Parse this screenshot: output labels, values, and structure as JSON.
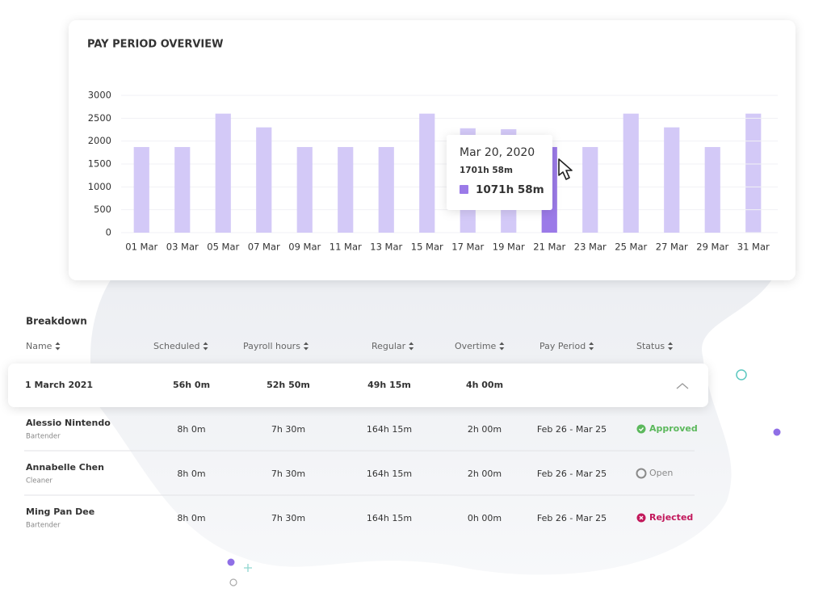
{
  "chart_data": {
    "type": "bar",
    "title": "PAY PERIOD OVERVIEW",
    "categories": [
      "01 Mar",
      "03 Mar",
      "05 Mar",
      "07 Mar",
      "09 Mar",
      "11 Mar",
      "13 Mar",
      "15 Mar",
      "17 Mar",
      "19 Mar",
      "21 Mar",
      "23 Mar",
      "25 Mar",
      "27 Mar",
      "29 Mar",
      "31 Mar"
    ],
    "values": [
      1870,
      1870,
      2600,
      2300,
      1870,
      1870,
      1870,
      2600,
      2280,
      2260,
      1870,
      1870,
      2600,
      2300,
      1870,
      2600
    ],
    "color": "#d3c9f7",
    "highlight_color": "#9b7ae8",
    "highlight_index": 10,
    "ylim": [
      0,
      3000
    ],
    "yticks": [
      0,
      500,
      1000,
      1500,
      2000,
      2500,
      3000
    ],
    "grid": true,
    "tooltip": {
      "date": "Mar 20, 2020",
      "line1": "1701h 58m",
      "value": "1071h 58m"
    }
  },
  "breakdown": {
    "title": "Breakdown",
    "headers": [
      "Name",
      "Scheduled",
      "Payroll hours",
      "Regular",
      "Overtime",
      "Pay Period",
      "Status"
    ],
    "group": [
      "1 March 2021",
      "56h 0m",
      "52h 50m",
      "49h 15m",
      "4h 00m"
    ],
    "rows": [
      {
        "name": "Alessio Nintendo",
        "role": "Bartender",
        "cells": [
          "8h 0m",
          "7h 30m",
          "164h 15m",
          "2h 00m",
          "Feb 26 - Mar 25"
        ],
        "status": "Approved",
        "status_color": "#5cb85c"
      },
      {
        "name": "Annabelle Chen",
        "role": "Cleaner",
        "cells": [
          "8h 0m",
          "7h 30m",
          "164h 15m",
          "2h 00m",
          "Feb 26 - Mar 25"
        ],
        "status": "Open",
        "status_color": "#8a8a8a"
      },
      {
        "name": "Ming Pan Dee",
        "role": "Bartender",
        "cells": [
          "8h 0m",
          "7h 30m",
          "164h 15m",
          "0h 00m",
          "Feb 26 - Mar 25"
        ],
        "status": "Rejected",
        "status_color": "#c2185b"
      }
    ]
  }
}
